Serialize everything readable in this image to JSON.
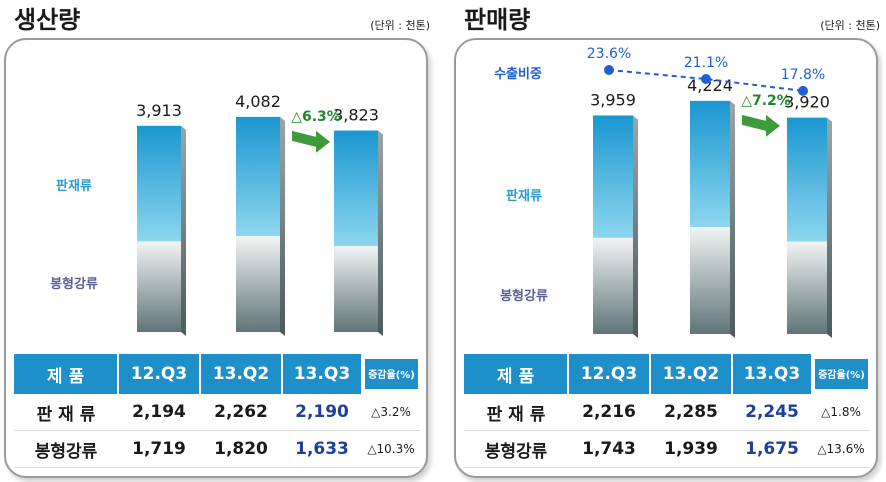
{
  "colors": {
    "bar_top": "#1a97d0",
    "bar_top_light": "#8dd6ef",
    "bar_bottom_light": "#f2f4f4",
    "bar_bottom_dark": "#5f7478",
    "header": "#1f8fc9",
    "total_growth": "#1d8a2a",
    "arrow": "#3f9b3a",
    "export_line": "#1f5fd6",
    "highlight_value": "#1f3f9e",
    "category_label_top": "#2a9bd6",
    "category_label_bottom": "#5b5e9c"
  },
  "panels": [
    {
      "title": "생산량",
      "unit": "(단위 : 천톤)",
      "labels": {
        "top": "판재류",
        "bottom": "봉형강류"
      },
      "growth_label": "△6.3%",
      "table": {
        "headers": [
          "제    품",
          "12.Q3",
          "13.Q2",
          "13.Q3",
          "증감율(%)"
        ],
        "rows": [
          {
            "cells": [
              "판 재 류",
              "2,194",
              "2,262",
              "2,190",
              "△3.2%"
            ]
          },
          {
            "cells": [
              "봉형강류",
              "1,719",
              "1,820",
              "1,633",
              "△10.3%"
            ]
          }
        ]
      },
      "chart_data": {
        "type": "bar",
        "stacked": true,
        "categories": [
          "12.Q3",
          "13.Q2",
          "13.Q3"
        ],
        "series": [
          {
            "name": "봉형강류",
            "values": [
              1719,
              1820,
              1633
            ]
          },
          {
            "name": "판재류",
            "values": [
              2194,
              2262,
              2190
            ]
          }
        ],
        "totals": [
          3913,
          4082,
          3823
        ],
        "total_labels": [
          "3,913",
          "4,082",
          "3,823"
        ],
        "growth_annotation": "△6.3%"
      }
    },
    {
      "title": "판매량",
      "unit": "(단위 : 천톤)",
      "labels": {
        "top": "판재류",
        "bottom": "봉형강류",
        "line": "수출비중"
      },
      "growth_label": "△7.2%",
      "table": {
        "headers": [
          "제    품",
          "12.Q3",
          "13.Q2",
          "13.Q3",
          "증감율(%)"
        ],
        "rows": [
          {
            "cells": [
              "판 재 류",
              "2,216",
              "2,285",
              "2,245",
              "△1.8%"
            ]
          },
          {
            "cells": [
              "봉형강류",
              "1,743",
              "1,939",
              "1,675",
              "△13.6%"
            ]
          }
        ]
      },
      "chart_data": {
        "type": "bar",
        "stacked": true,
        "categories": [
          "12.Q3",
          "13.Q2",
          "13.Q3"
        ],
        "series": [
          {
            "name": "봉형강류",
            "values": [
              1743,
              1939,
              1675
            ]
          },
          {
            "name": "판재류",
            "values": [
              2216,
              2285,
              2245
            ]
          }
        ],
        "totals": [
          3959,
          4224,
          3920
        ],
        "total_labels": [
          "3,959",
          "4,224",
          "3,920"
        ],
        "growth_annotation": "△7.2%",
        "line_series": {
          "name": "수출비중",
          "values": [
            23.6,
            21.1,
            17.8
          ],
          "labels": [
            "23.6%",
            "21.1%",
            "17.8%"
          ]
        }
      }
    }
  ]
}
